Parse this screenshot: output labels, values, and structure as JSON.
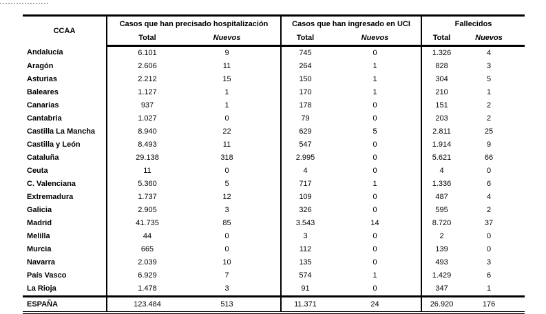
{
  "table": {
    "region_header": "CCAA",
    "groups": [
      "Casos que han precisado hospitalización",
      "Casos que han ingresado en UCI",
      "Fallecidos"
    ],
    "subheaders": [
      "Total",
      "Nuevos",
      "Total",
      "Nuevos",
      "Total",
      "Nuevos"
    ],
    "rows": [
      [
        "Andalucía",
        "6.101",
        "9",
        "745",
        "0",
        "1.326",
        "4"
      ],
      [
        "Aragón",
        "2.606",
        "11",
        "264",
        "1",
        "828",
        "3"
      ],
      [
        "Asturias",
        "2.212",
        "15",
        "150",
        "1",
        "304",
        "5"
      ],
      [
        "Baleares",
        "1.127",
        "1",
        "170",
        "1",
        "210",
        "1"
      ],
      [
        "Canarias",
        "937",
        "1",
        "178",
        "0",
        "151",
        "2"
      ],
      [
        "Cantabria",
        "1.027",
        "0",
        "79",
        "0",
        "203",
        "2"
      ],
      [
        "Castilla La Mancha",
        "8.940",
        "22",
        "629",
        "5",
        "2.811",
        "25"
      ],
      [
        "Castilla y León",
        "8.493",
        "11",
        "547",
        "0",
        "1.914",
        "9"
      ],
      [
        "Cataluña",
        "29.138",
        "318",
        "2.995",
        "0",
        "5.621",
        "66"
      ],
      [
        "Ceuta",
        "11",
        "0",
        "4",
        "0",
        "4",
        "0"
      ],
      [
        "C. Valenciana",
        "5.360",
        "5",
        "717",
        "1",
        "1.336",
        "6"
      ],
      [
        "Extremadura",
        "1.737",
        "12",
        "109",
        "0",
        "487",
        "4"
      ],
      [
        "Galicia",
        "2.905",
        "3",
        "326",
        "0",
        "595",
        "2"
      ],
      [
        "Madrid",
        "41.735",
        "85",
        "3.543",
        "14",
        "8.720",
        "37"
      ],
      [
        "Melilla",
        "44",
        "0",
        "3",
        "0",
        "2",
        "0"
      ],
      [
        "Murcia",
        "665",
        "0",
        "112",
        "0",
        "139",
        "0"
      ],
      [
        "Navarra",
        "2.039",
        "10",
        "135",
        "0",
        "493",
        "3"
      ],
      [
        "País Vasco",
        "6.929",
        "7",
        "574",
        "1",
        "1.429",
        "6"
      ],
      [
        "La Rioja",
        "1.478",
        "3",
        "91",
        "0",
        "347",
        "1"
      ]
    ],
    "total": [
      "ESPAÑA",
      "123.484",
      "513",
      "11.371",
      "24",
      "26.920",
      "176"
    ]
  }
}
